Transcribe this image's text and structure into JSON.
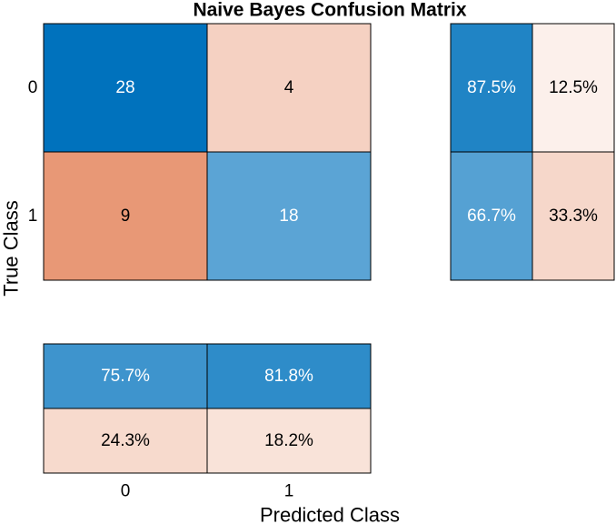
{
  "chart_data": {
    "type": "heatmap",
    "title": "Naive Bayes Confusion Matrix",
    "xlabel": "Predicted Class",
    "ylabel": "True Class",
    "row_labels": [
      "0",
      "1"
    ],
    "col_labels": [
      "0",
      "1"
    ],
    "matrix": [
      [
        28,
        4
      ],
      [
        9,
        18
      ]
    ],
    "row_summary": [
      [
        "87.5%",
        "12.5%"
      ],
      [
        "66.7%",
        "33.3%"
      ]
    ],
    "column_summary": [
      [
        "75.7%",
        "81.8%"
      ],
      [
        "24.3%",
        "18.2%"
      ]
    ],
    "colors": {
      "correct_dark": "#0072bd",
      "correct_light": "#ffffff",
      "incorrect_dark": "#d9541a",
      "incorrect_light": "#ffffff",
      "border": "#000000"
    }
  }
}
